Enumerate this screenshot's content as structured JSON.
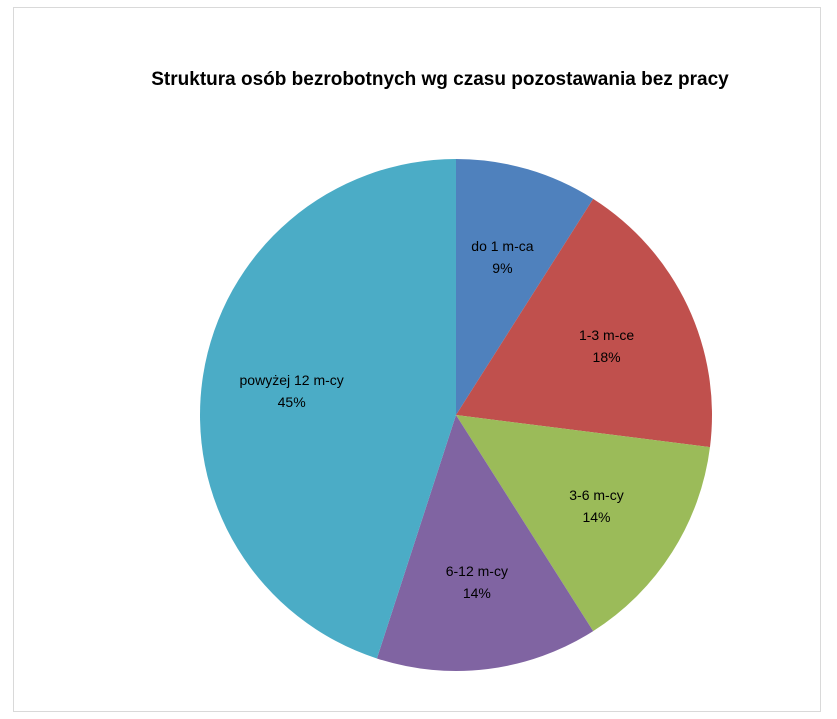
{
  "chart_data": {
    "type": "pie",
    "title": "Struktura osób bezrobotnych wg czasu pozostawania bez pracy",
    "slices": [
      {
        "label": "do 1 m-ca",
        "value": 9,
        "value_label": "9%",
        "color": "#4F81BD"
      },
      {
        "label": "1-3 m-ce",
        "value": 18,
        "value_label": "18%",
        "color": "#C0504D"
      },
      {
        "label": "3-6 m-cy",
        "value": 14,
        "value_label": "14%",
        "color": "#9BBB59"
      },
      {
        "label": "6-12 m-cy",
        "value": 14,
        "value_label": "14%",
        "color": "#8064A2"
      },
      {
        "label": "powyżej 12 m-cy",
        "value": 45,
        "value_label": "45%",
        "color": "#4BACC6"
      }
    ],
    "legend": "none",
    "start_angle": "12 o'clock",
    "direction": "clockwise"
  }
}
